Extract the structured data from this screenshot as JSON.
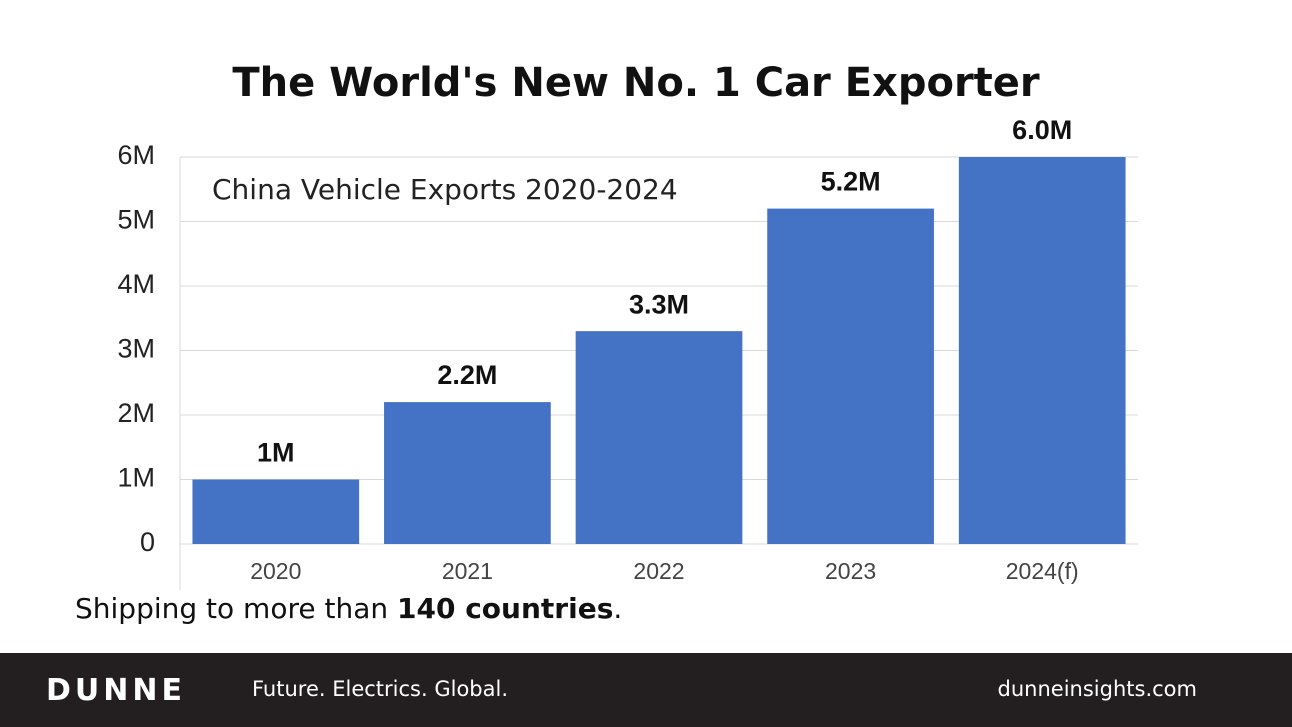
{
  "chart_data": {
    "type": "bar",
    "title": "The World's New No. 1 Car Exporter",
    "subtitle": "China Vehicle Exports 2020-2024",
    "categories": [
      "2020",
      "2021",
      "2022",
      "2023",
      "2024(f)"
    ],
    "values": [
      1,
      2.2,
      3.3,
      5.2,
      6.0
    ],
    "value_labels": [
      "1M",
      "2.2M",
      "3.3M",
      "5.2M",
      "6.0M"
    ],
    "color": "#4472c4",
    "ylim": [
      0,
      6
    ],
    "yticks": [
      0,
      {
        "value": 1,
        "label": "1M"
      },
      {
        "value": 2,
        "label": "2M"
      },
      {
        "value": 3,
        "label": "3M"
      },
      {
        "value": 4,
        "label": "4M"
      },
      {
        "value": 5,
        "label": "5M"
      },
      {
        "value": 6,
        "label": "6M"
      }
    ],
    "grid": true
  },
  "caption": {
    "parts": [
      "Shipping to more than ",
      "140 countries",
      "."
    ]
  },
  "footer": {
    "brand": "DUNNE",
    "tagline": "Future. Electrics. Global.",
    "website": "dunneinsights.com"
  }
}
